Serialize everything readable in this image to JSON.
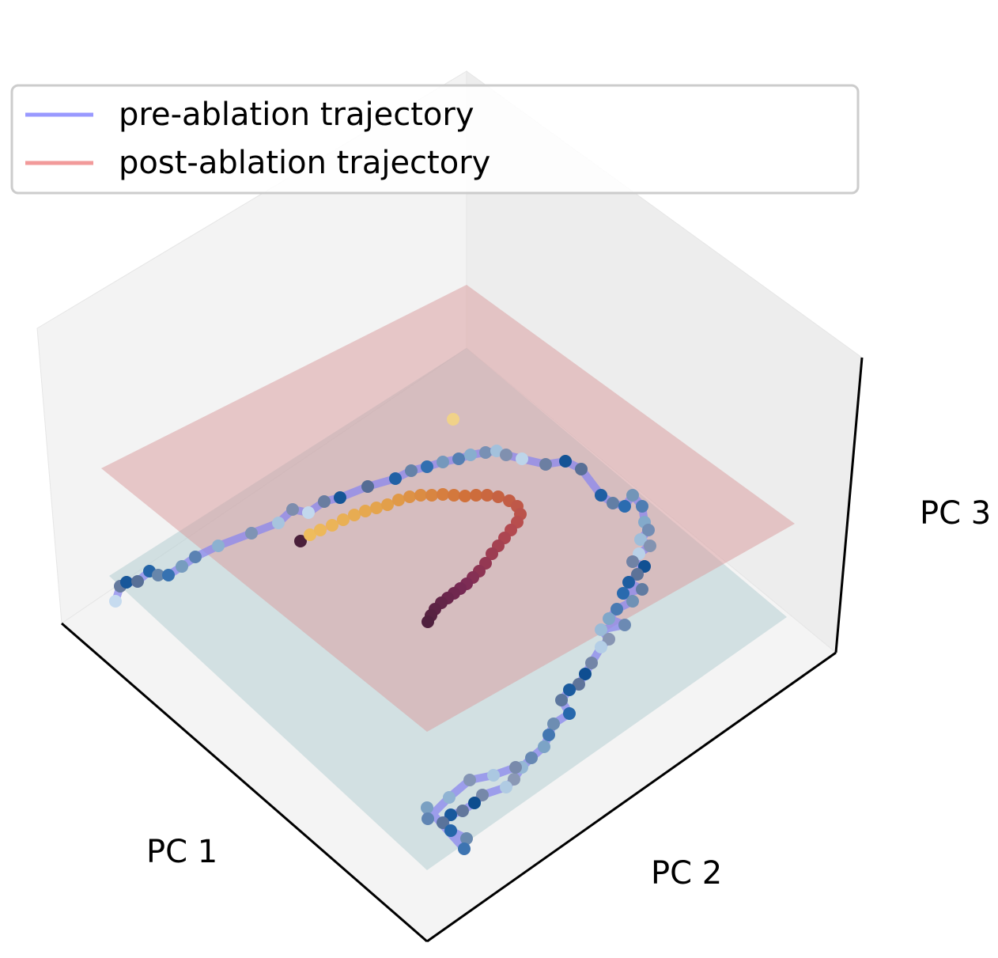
{
  "chart_data": {
    "type": "scatter",
    "projection": "3d",
    "title": "",
    "axes": {
      "xlabel": "PC 1",
      "ylabel": "PC 2",
      "zlabel": "PC 3"
    },
    "grid": false,
    "legend": {
      "placement": "top-left",
      "entries": [
        {
          "label": "pre-ablation trajectory",
          "color": "#9999ff"
        },
        {
          "label": "post-ablation trajectory",
          "color": "#f29a9a"
        }
      ]
    },
    "planes": [
      {
        "name": "lower plane",
        "color": "#a9c7cc",
        "opacity": 0.35
      },
      {
        "name": "upper plane",
        "color": "#d99a9c",
        "opacity": 0.45
      }
    ],
    "series": [
      {
        "name": "pre-ablation trajectory",
        "line_color": "#8a87ee",
        "colormap": "Blues",
        "points": [
          [
            146,
            760
          ],
          [
            152,
            741
          ],
          [
            160,
            736
          ],
          [
            174,
            735
          ],
          [
            189,
            722
          ],
          [
            200,
            727
          ],
          [
            213,
            727
          ],
          [
            230,
            716
          ],
          [
            247,
            704
          ],
          [
            276,
            690
          ],
          [
            318,
            674
          ],
          [
            352,
            661
          ],
          [
            370,
            644
          ],
          [
            390,
            648
          ],
          [
            410,
            634
          ],
          [
            430,
            629
          ],
          [
            465,
            615
          ],
          [
            500,
            605
          ],
          [
            520,
            595
          ],
          [
            540,
            590
          ],
          [
            560,
            584
          ],
          [
            580,
            580
          ],
          [
            595,
            575
          ],
          [
            614,
            572
          ],
          [
            628,
            570
          ],
          [
            640,
            575
          ],
          [
            660,
            580
          ],
          [
            690,
            587
          ],
          [
            715,
            583
          ],
          [
            735,
            593
          ],
          [
            760,
            626
          ],
          [
            775,
            636
          ],
          [
            790,
            640
          ],
          [
            800,
            626
          ],
          [
            812,
            640
          ],
          [
            815,
            660
          ],
          [
            820,
            670
          ],
          [
            810,
            682
          ],
          [
            822,
            690
          ],
          [
            808,
            700
          ],
          [
            800,
            710
          ],
          [
            815,
            716
          ],
          [
            806,
            726
          ],
          [
            795,
            736
          ],
          [
            812,
            745
          ],
          [
            788,
            750
          ],
          [
            800,
            760
          ],
          [
            780,
            770
          ],
          [
            770,
            782
          ],
          [
            790,
            790
          ],
          [
            760,
            796
          ],
          [
            770,
            808
          ],
          [
            760,
            818
          ],
          [
            748,
            838
          ],
          [
            740,
            852
          ],
          [
            732,
            865
          ],
          [
            720,
            872
          ],
          [
            710,
            885
          ],
          [
            720,
            902
          ],
          [
            700,
            915
          ],
          [
            694,
            929
          ],
          [
            688,
            944
          ],
          [
            672,
            958
          ],
          [
            660,
            970
          ],
          [
            650,
            985
          ],
          [
            640,
            995
          ],
          [
            610,
            1005
          ],
          [
            600,
            1015
          ],
          [
            585,
            1025
          ],
          [
            570,
            1030
          ],
          [
            560,
            1040
          ],
          [
            570,
            1050
          ],
          [
            590,
            1060
          ],
          [
            587,
            1073
          ],
          [
            540,
            1021
          ],
          [
            541,
            1035
          ],
          [
            568,
            1008
          ],
          [
            594,
            986
          ],
          [
            624,
            980
          ],
          [
            652,
            970
          ]
        ]
      },
      {
        "name": "post-ablation trajectory",
        "line_color": "#f29a9a",
        "colormap": "inferno",
        "points": [
          [
            380,
            684
          ],
          [
            392,
            676
          ],
          [
            405,
            670
          ],
          [
            420,
            664
          ],
          [
            434,
            657
          ],
          [
            448,
            651
          ],
          [
            462,
            646
          ],
          [
            476,
            642
          ],
          [
            490,
            638
          ],
          [
            504,
            632
          ],
          [
            518,
            628
          ],
          [
            532,
            626
          ],
          [
            546,
            626
          ],
          [
            560,
            625
          ],
          [
            574,
            626
          ],
          [
            588,
            627
          ],
          [
            602,
            626
          ],
          [
            616,
            626
          ],
          [
            630,
            628
          ],
          [
            644,
            633
          ],
          [
            654,
            640
          ],
          [
            658,
            650
          ],
          [
            654,
            660
          ],
          [
            646,
            670
          ],
          [
            638,
            680
          ],
          [
            630,
            690
          ],
          [
            622,
            700
          ],
          [
            614,
            712
          ],
          [
            606,
            722
          ],
          [
            598,
            730
          ],
          [
            590,
            738
          ],
          [
            582,
            744
          ],
          [
            574,
            750
          ],
          [
            566,
            756
          ],
          [
            558,
            762
          ],
          [
            550,
            770
          ],
          [
            545,
            778
          ],
          [
            541,
            786
          ]
        ]
      },
      {
        "name": "outlier",
        "color": "#f0d289",
        "points": [
          [
            573,
            530
          ]
        ]
      }
    ]
  }
}
